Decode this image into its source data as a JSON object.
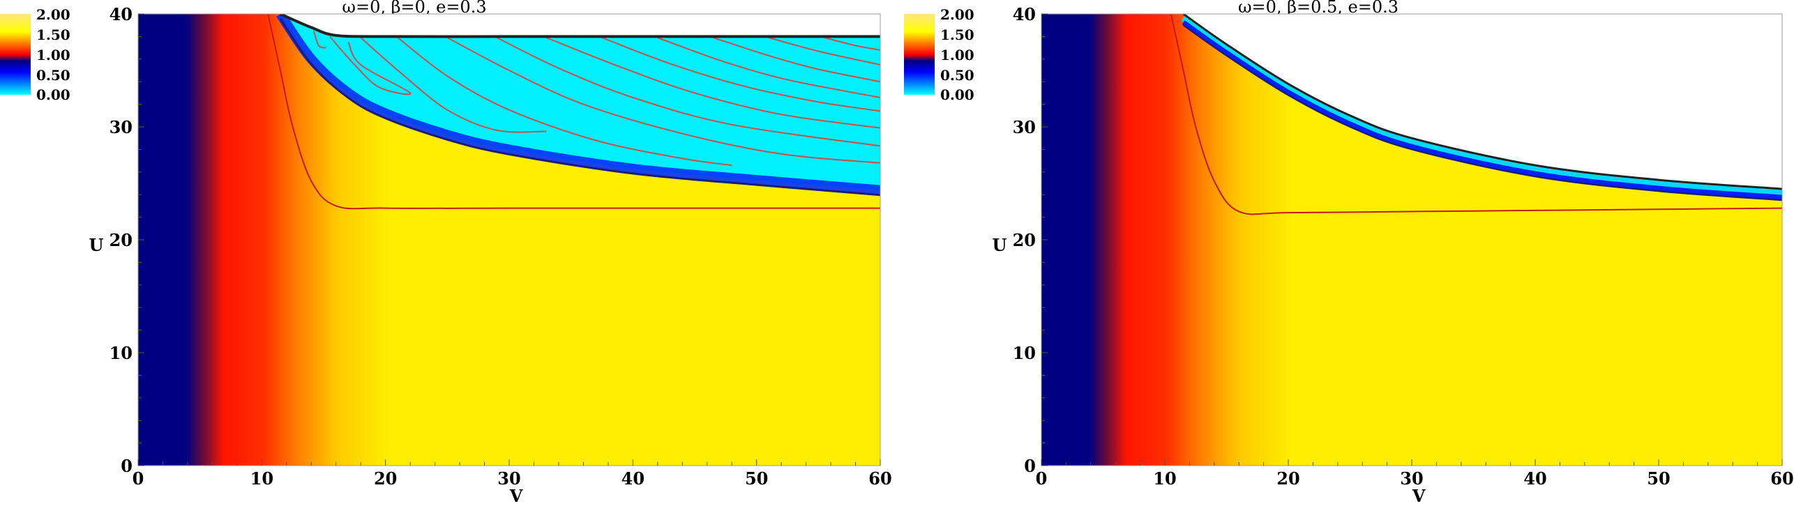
{
  "chart_data": [
    {
      "type": "heatmap",
      "title": "ω=0,   β=0,   e=0.3",
      "xlabel": "V",
      "ylabel": "U",
      "xlim": [
        0,
        60
      ],
      "ylim": [
        0,
        40
      ],
      "xticks": [
        "0",
        "10",
        "20",
        "30",
        "40",
        "50",
        "60"
      ],
      "yticks": [
        "0",
        "10",
        "20",
        "30",
        "40"
      ],
      "colorbar": {
        "range": [
          0,
          2
        ],
        "ticks": [
          "2.00",
          "1.50",
          "1.00",
          "0.50",
          "0.00"
        ],
        "colors": [
          "#00ffff",
          "#0000ff",
          "#000080",
          "#ff0000",
          "#ffff00",
          "#ffe680"
        ]
      },
      "beta": 0,
      "boundary_v": [
        11.5,
        14,
        16,
        20,
        30,
        40,
        50,
        60
      ],
      "boundary_u": [
        40,
        38.8,
        38.1,
        38.0,
        38.0,
        38.0,
        38.0,
        38.0
      ],
      "level_one_curve": {
        "v": [
          10.5,
          11.5,
          12.5,
          14,
          16,
          20,
          30,
          40,
          50,
          60
        ],
        "u": [
          40,
          35,
          30,
          25.2,
          23.0,
          22.8,
          22.8,
          22.8,
          22.8,
          22.8
        ]
      }
    },
    {
      "type": "heatmap",
      "title": "ω=0,   β=0.5,   e=0.3",
      "xlabel": "V",
      "ylabel": "U",
      "xlim": [
        0,
        60
      ],
      "ylim": [
        0,
        40
      ],
      "xticks": [
        "0",
        "10",
        "20",
        "30",
        "40",
        "50",
        "60"
      ],
      "yticks": [
        "0",
        "10",
        "20",
        "30",
        "40"
      ],
      "colorbar": {
        "range": [
          0,
          2
        ],
        "ticks": [
          "2.00",
          "1.50",
          "1.00",
          "0.50",
          "0.00"
        ],
        "colors": [
          "#00ffff",
          "#0000ff",
          "#000080",
          "#ff0000",
          "#ffff00",
          "#ffe680"
        ]
      },
      "beta": 0.5,
      "boundary_v": [
        11.5,
        15,
        20,
        25,
        30,
        40,
        50,
        60
      ],
      "boundary_u": [
        40,
        37.3,
        33.8,
        31.0,
        29.0,
        26.6,
        25.3,
        24.5
      ],
      "level_one_curve": {
        "v": [
          10.5,
          11.5,
          12.5,
          14,
          16,
          20,
          30,
          40,
          50,
          60
        ],
        "u": [
          40,
          35,
          30,
          25.2,
          22.5,
          22.4,
          22.5,
          22.6,
          22.7,
          22.8
        ]
      }
    }
  ]
}
